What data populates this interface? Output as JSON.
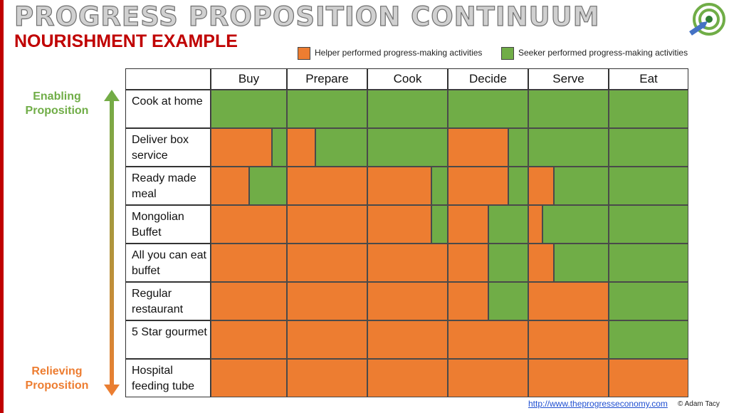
{
  "header": {
    "title": "PROGRESS PROPOSITION CONTINUUM",
    "subtitle": "NOURISHMENT EXAMPLE",
    "logo_icon": "target-with-arrow-icon"
  },
  "legend": {
    "helper": {
      "label": "Helper performed progress-making activities",
      "color": "#ed7d31"
    },
    "seeker": {
      "label": "Seeker performed progress-making activities",
      "color": "#70ad47"
    }
  },
  "axis": {
    "top_label": "Enabling Proposition",
    "bottom_label": "Relieving Proposition",
    "arrow_icon": "double-headed-vertical-arrow-icon"
  },
  "columns": [
    "Buy",
    "Prepare",
    "Cook",
    "Decide",
    "Serve",
    "Eat"
  ],
  "rows": [
    {
      "label": "Cook at home",
      "helper_share": [
        0,
        0,
        0,
        0,
        0,
        0
      ]
    },
    {
      "label": "Deliver box service",
      "helper_share": [
        0.8,
        0.35,
        0,
        0.75,
        0,
        0
      ]
    },
    {
      "label": "Ready made meal",
      "helper_share": [
        0.5,
        1,
        0.8,
        0.75,
        0.32,
        0
      ]
    },
    {
      "label": "Mongolian Buffet",
      "helper_share": [
        1,
        1,
        0.8,
        0.5,
        0.18,
        0
      ]
    },
    {
      "label": "All you can eat buffet",
      "helper_share": [
        1,
        1,
        1,
        0.5,
        0.32,
        0
      ]
    },
    {
      "label": "Regular restaurant",
      "helper_share": [
        1,
        1,
        1,
        0.5,
        1,
        0
      ]
    },
    {
      "label": "5 Star gourmet",
      "helper_share": [
        1,
        1,
        1,
        1,
        1,
        0
      ]
    },
    {
      "label": "Hospital feeding tube",
      "helper_share": [
        1,
        1,
        1,
        1,
        1,
        1
      ]
    }
  ],
  "footer": {
    "url": "http://www.theprogresseconomy.com",
    "copyright": "© Adam Tacy"
  }
}
